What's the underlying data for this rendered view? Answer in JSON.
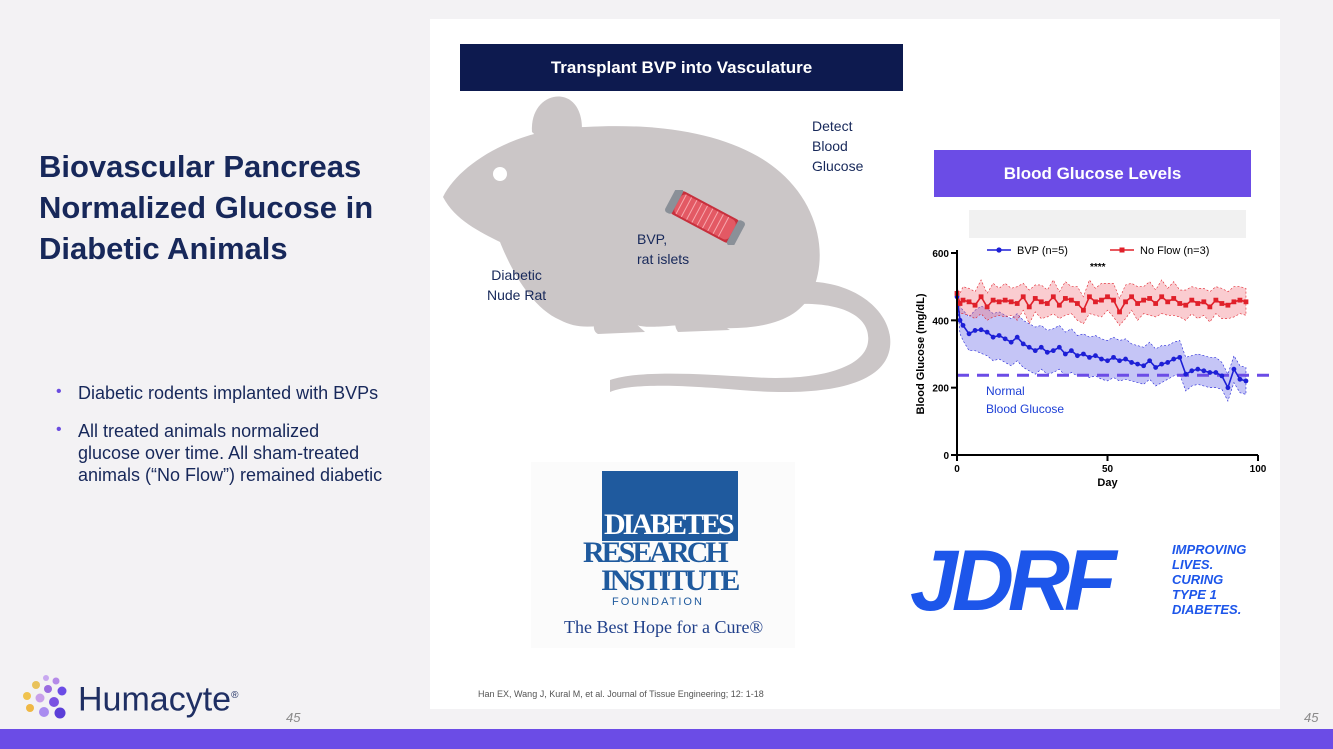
{
  "slide": {
    "title": "Biovascular Pancreas Normalized Glucose in Diabetic Animals",
    "bullets": [
      "Diabetic rodents implanted with BVPs",
      "All treated animals normalized glucose over time.  All sham-treated animals (“No Flow”) remained diabetic"
    ],
    "page_number": "45",
    "citation": "Han EX, Wang J, Kural M, et al. Journal of Tissue Engineering; 12: 1-18"
  },
  "diagram": {
    "header": "Transplant BVP into Vasculature",
    "labels": {
      "detect": "Detect\nBlood\nGlucose",
      "bvp": "BVP,\nrat islets",
      "rat": "Diabetic\nNude Rat"
    }
  },
  "logos": {
    "dri": {
      "line1": "DIABETES",
      "line2": "RESEARCH",
      "line3": "INSTITUTE",
      "line4": "FOUNDATION",
      "tagline": "The Best Hope for a Cure®"
    },
    "jdrf": {
      "name": "JDRF",
      "tagline": [
        "IMPROVING",
        "LIVES.",
        "CURING",
        "TYPE 1",
        "DIABETES."
      ]
    },
    "humacyte": {
      "name": "Humacyte",
      "mark": "®"
    }
  },
  "colors": {
    "navy": "#0d1a4f",
    "purple": "#6b4ce6",
    "bvp": "#1d1fd6",
    "noflow": "#e0202a",
    "normal_line": "#6b4ce6"
  },
  "chart_data": {
    "type": "line",
    "title": "Blood Glucose Levels",
    "xlabel": "Day",
    "ylabel": "Blood Glucose (mg/dL)",
    "xlim": [
      0,
      100
    ],
    "ylim": [
      0,
      600
    ],
    "xticks": [
      0,
      50,
      100
    ],
    "yticks": [
      0,
      200,
      400,
      600
    ],
    "legend_position": "top",
    "significance_label": "****",
    "reference_line": {
      "y": 237,
      "label": "Normal\nBlood Glucose"
    },
    "series": [
      {
        "name": "BVP (n=5)",
        "x": [
          0,
          1,
          2,
          4,
          6,
          8,
          10,
          12,
          14,
          16,
          18,
          20,
          22,
          24,
          26,
          28,
          30,
          32,
          34,
          36,
          38,
          40,
          42,
          44,
          46,
          48,
          50,
          52,
          54,
          56,
          58,
          60,
          62,
          64,
          66,
          68,
          70,
          72,
          74,
          76,
          78,
          80,
          82,
          84,
          86,
          88,
          90,
          92,
          94,
          96
        ],
        "y": [
          470,
          400,
          385,
          360,
          370,
          372,
          365,
          350,
          355,
          345,
          335,
          350,
          330,
          320,
          310,
          320,
          305,
          310,
          320,
          300,
          310,
          295,
          300,
          290,
          295,
          285,
          280,
          290,
          280,
          285,
          275,
          270,
          265,
          280,
          260,
          270,
          275,
          285,
          290,
          240,
          250,
          255,
          250,
          245,
          245,
          235,
          200,
          255,
          225,
          220
        ],
        "band": [
          10,
          40,
          45,
          50,
          60,
          70,
          70,
          70,
          70,
          70,
          70,
          70,
          70,
          70,
          70,
          65,
          65,
          65,
          65,
          65,
          65,
          60,
          60,
          60,
          60,
          60,
          60,
          60,
          60,
          60,
          55,
          55,
          55,
          55,
          55,
          55,
          50,
          50,
          50,
          50,
          45,
          45,
          45,
          45,
          45,
          40,
          40,
          40,
          40,
          40
        ]
      },
      {
        "name": "No Flow (n=3)",
        "x": [
          0,
          1,
          2,
          4,
          6,
          8,
          10,
          12,
          14,
          16,
          18,
          20,
          22,
          24,
          26,
          28,
          30,
          32,
          34,
          36,
          38,
          40,
          42,
          44,
          46,
          48,
          50,
          52,
          54,
          56,
          58,
          60,
          62,
          64,
          66,
          68,
          70,
          72,
          74,
          76,
          78,
          80,
          82,
          84,
          86,
          88,
          90,
          92,
          94,
          96
        ],
        "y": [
          480,
          450,
          460,
          455,
          445,
          470,
          440,
          460,
          455,
          460,
          455,
          450,
          470,
          440,
          465,
          455,
          450,
          470,
          445,
          465,
          460,
          450,
          430,
          470,
          455,
          460,
          470,
          460,
          425,
          455,
          470,
          450,
          460,
          465,
          450,
          470,
          455,
          465,
          450,
          445,
          460,
          450,
          455,
          440,
          460,
          450,
          445,
          455,
          460,
          455
        ],
        "band": [
          20,
          30,
          40,
          40,
          40,
          50,
          40,
          50,
          40,
          50,
          40,
          50,
          40,
          50,
          40,
          50,
          40,
          50,
          40,
          50,
          40,
          50,
          40,
          50,
          40,
          50,
          40,
          50,
          40,
          50,
          40,
          50,
          40,
          50,
          40,
          50,
          40,
          50,
          40,
          45,
          40,
          45,
          40,
          45,
          40,
          45,
          40,
          45,
          40,
          40
        ]
      }
    ]
  }
}
